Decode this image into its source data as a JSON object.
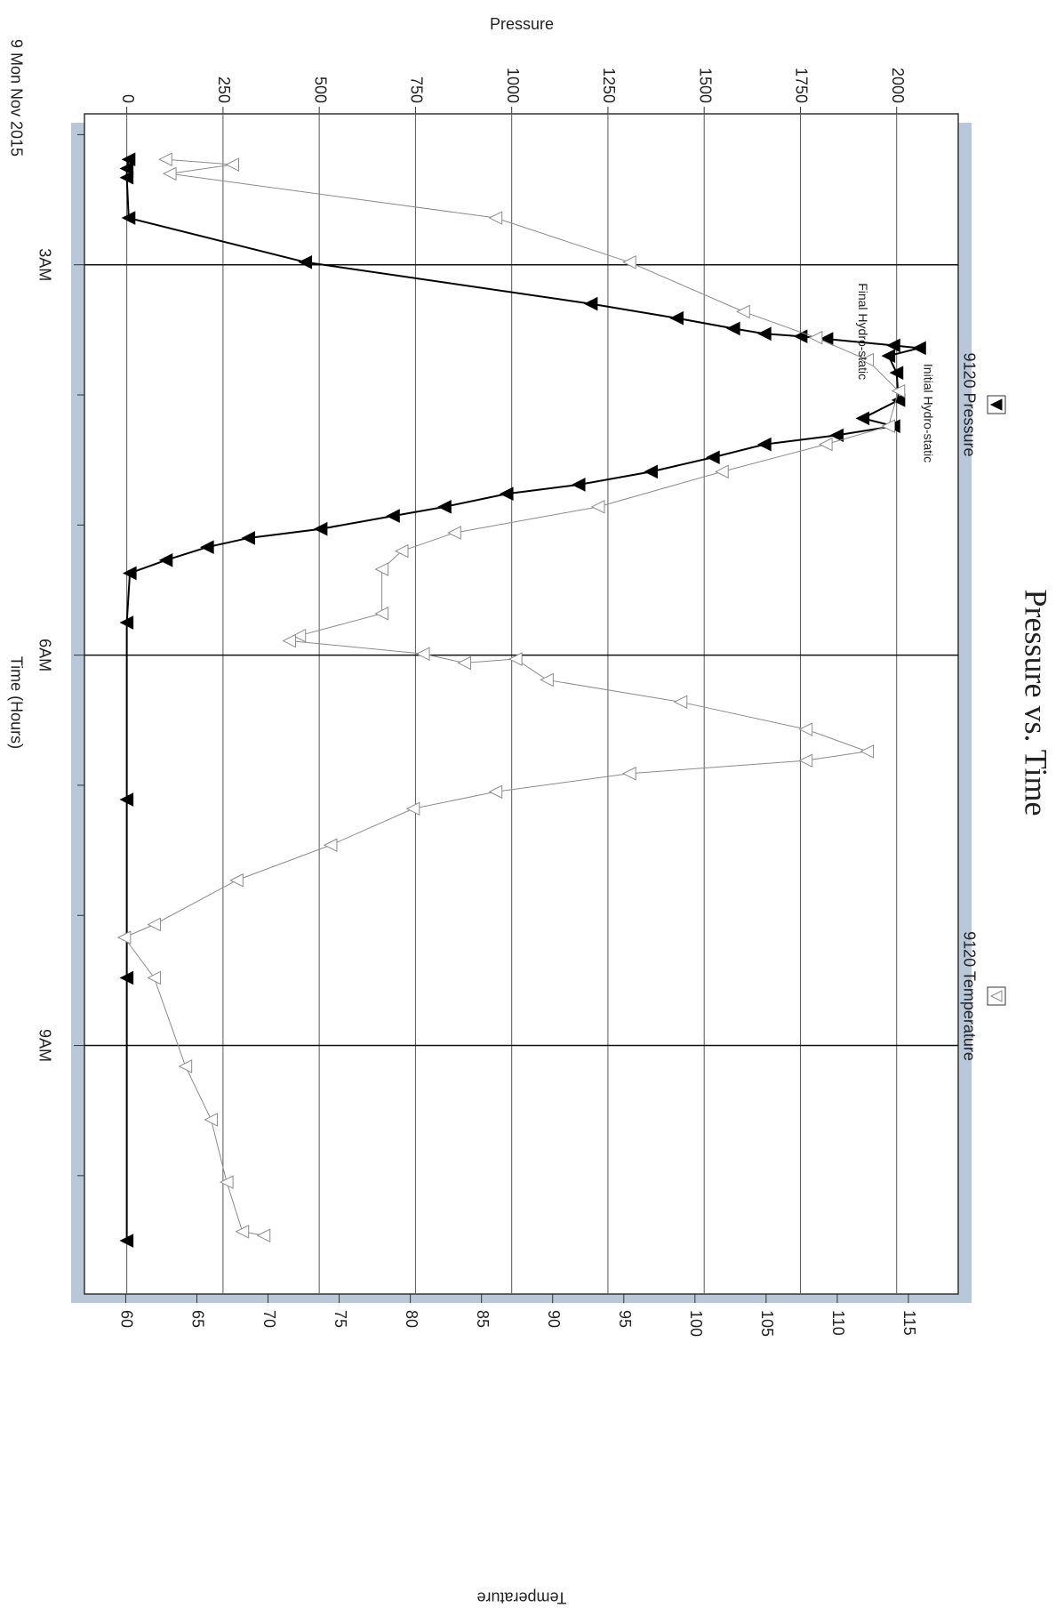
{
  "chart_data": {
    "type": "line",
    "title": "Pressure vs. Time",
    "date_label": "9 Mon Nov 2015",
    "x_label": "Time (Hours)",
    "y_label": "Pressure",
    "y2_label": "Temperature",
    "xlim": [
      1.84,
      10.91
    ],
    "xticks": [
      {
        "value": 3,
        "label": "3AM"
      },
      {
        "value": 6,
        "label": "6AM"
      },
      {
        "value": 9,
        "label": "9AM"
      }
    ],
    "xminorticks": [
      2,
      4,
      5,
      7,
      8,
      10
    ],
    "ylim": [
      -110,
      2160
    ],
    "yticks": [
      0,
      250,
      500,
      750,
      1000,
      1250,
      1500,
      1750,
      2000
    ],
    "y2lim": [
      57.1,
      118.5
    ],
    "y2ticks": [
      60,
      65,
      70,
      75,
      80,
      85,
      90,
      95,
      100,
      105,
      110,
      115
    ],
    "grid": true,
    "legend": "top",
    "series": [
      {
        "name": "9120 Pressure",
        "color": "#000000",
        "marker": "filled",
        "x": [
          2.19,
          2.26,
          2.33,
          2.64,
          2.98,
          3.3,
          3.41,
          3.49,
          3.53,
          3.55,
          3.57,
          3.62,
          3.64,
          3.7,
          3.83,
          4.04,
          4.18,
          4.24,
          4.31,
          4.38,
          4.48,
          4.59,
          4.69,
          4.76,
          4.86,
          4.93,
          5.03,
          5.1,
          5.17,
          5.27,
          5.37,
          5.75,
          7.11,
          8.48,
          10.5
        ],
        "values": [
          5,
          0,
          0,
          5,
          464,
          1206,
          1429,
          1576,
          1657,
          1751,
          1818,
          1992,
          2059,
          1979,
          2000,
          2005,
          1912,
          1992,
          1845,
          1657,
          1523,
          1362,
          1174,
          987,
          826,
          692,
          504,
          316,
          209,
          102,
          8,
          0,
          0,
          0,
          0
        ]
      },
      {
        "name": "9120 Temperature",
        "color": "#8c8c8c",
        "marker": "open",
        "axis": "y2",
        "x": [
          2.19,
          2.23,
          2.3,
          2.64,
          2.98,
          3.36,
          3.56,
          3.73,
          3.97,
          4.24,
          4.38,
          4.59,
          4.86,
          5.06,
          5.2,
          5.34,
          5.68,
          5.85,
          5.89,
          5.99,
          6.06,
          6.03,
          6.19,
          6.36,
          6.57,
          6.74,
          6.81,
          6.91,
          7.05,
          7.18,
          7.46,
          7.73,
          8.07,
          8.17,
          8.48,
          9.16,
          9.57,
          10.05,
          10.43,
          10.46
        ],
        "values": [
          62.8,
          67.5,
          63.1,
          86.0,
          95.4,
          103.4,
          108.5,
          112.1,
          114.3,
          113.6,
          109.2,
          101.9,
          93.2,
          83.1,
          79.4,
          78.0,
          78.0,
          72.2,
          71.5,
          80.9,
          83.8,
          87.4,
          89.6,
          99.0,
          107.8,
          112.1,
          107.8,
          95.4,
          86.0,
          80.2,
          74.4,
          67.8,
          62.0,
          59.9,
          62.0,
          64.2,
          66.0,
          67.1,
          68.2,
          69.7
        ]
      }
    ],
    "annotations": [
      {
        "text": "Initial Hydro-static",
        "x": 3.76,
        "y": 2080
      },
      {
        "text": "Final Hydro-static",
        "x": 3.14,
        "y": 1910
      }
    ]
  }
}
